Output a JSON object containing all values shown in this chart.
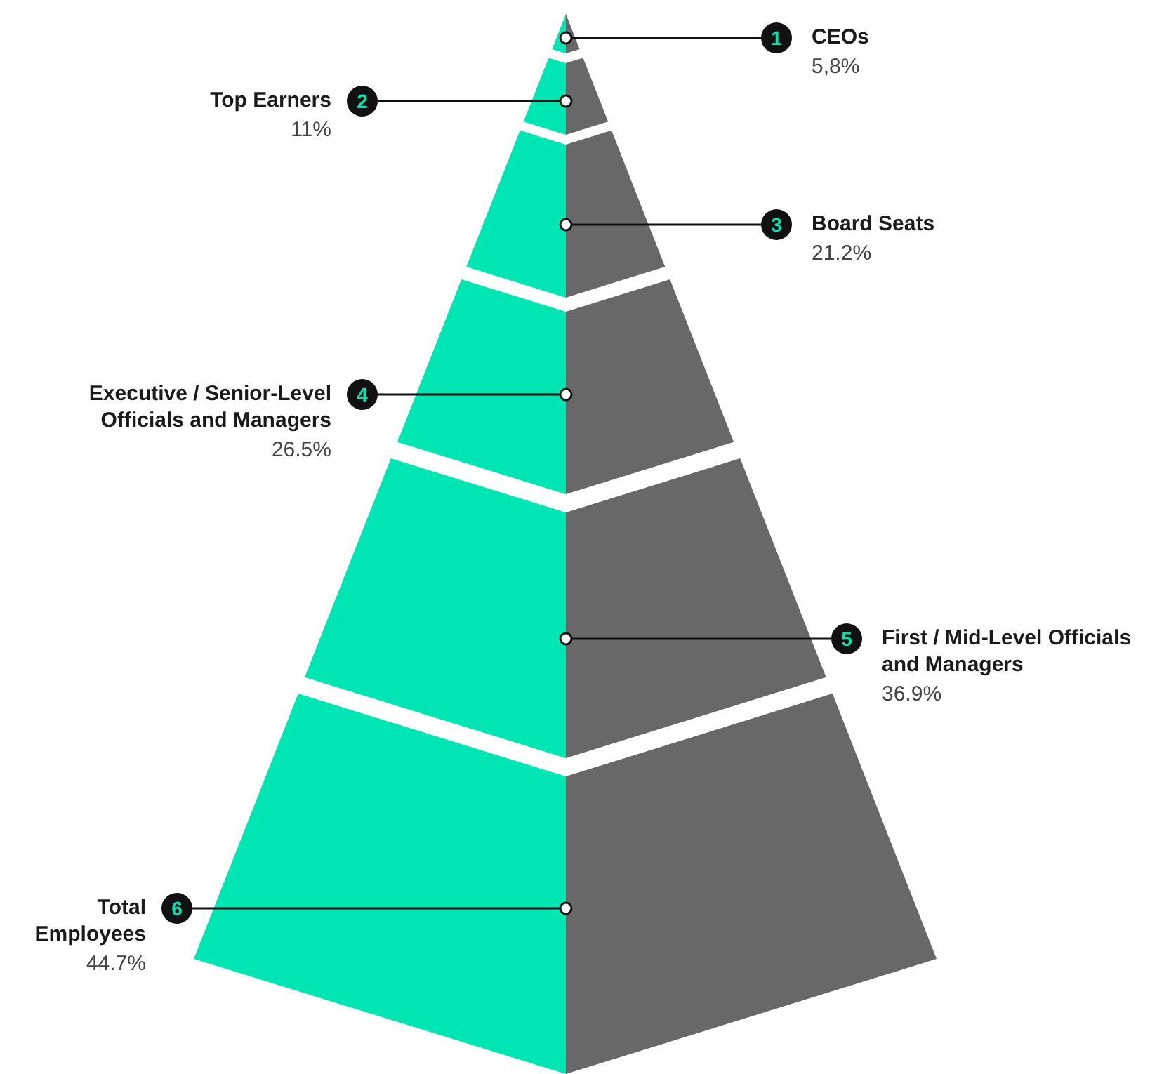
{
  "chart_data": {
    "type": "other",
    "categories": [
      "CEOs",
      "Top Earners",
      "Board Seats",
      "Executive / Senior-Level Officials and Managers",
      "First / Mid-Level Officials and Managers",
      "Total Employees"
    ],
    "values": [
      5.8,
      11,
      21.2,
      26.5,
      36.9,
      44.7
    ],
    "value_labels": [
      "5,8%",
      "11%",
      "21.2%",
      "26.5%",
      "36.9%",
      "44.7%"
    ],
    "annotations": [
      "1",
      "2",
      "3",
      "4",
      "5",
      "6"
    ],
    "colors": [
      "#00e5b4",
      "#00e5b4",
      "#00e5b4",
      "#00e5b4",
      "#00e5b4",
      "#00e5b4"
    ]
  }
}
